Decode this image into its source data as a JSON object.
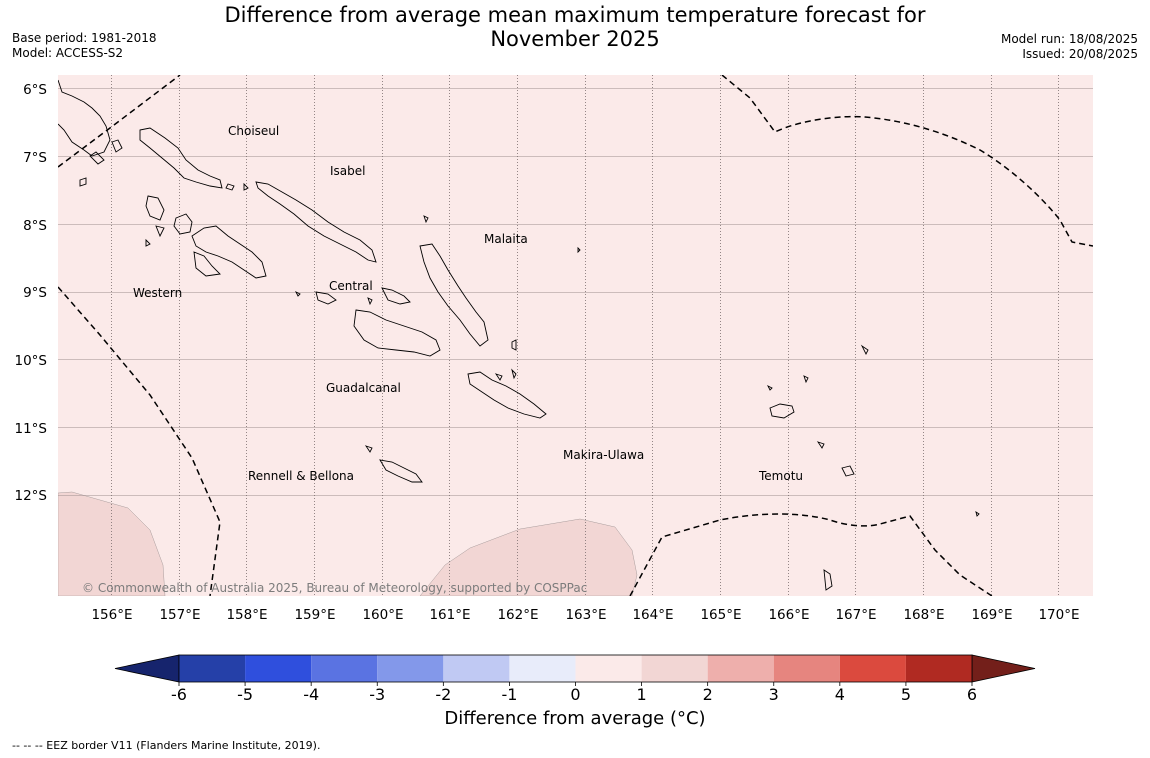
{
  "title": {
    "line1": "Difference from average mean maximum temperature forecast for",
    "line2": "November 2025"
  },
  "meta_left": {
    "base_period": "Base period: 1981-2018",
    "model": "Model: ACCESS-S2"
  },
  "meta_right": {
    "model_run": "Model run: 18/08/2025",
    "issued": "Issued: 20/08/2025"
  },
  "map": {
    "background_color": "#fbeae9",
    "region_color": "#f2d6d4",
    "lon_labels": [
      "156°E",
      "157°E",
      "158°E",
      "159°E",
      "160°E",
      "161°E",
      "162°E",
      "163°E",
      "164°E",
      "165°E",
      "166°E",
      "167°E",
      "168°E",
      "169°E",
      "170°E"
    ],
    "lat_labels": [
      "6°S",
      "7°S",
      "8°S",
      "9°S",
      "10°S",
      "11°S",
      "12°S"
    ],
    "provinces": [
      "Choiseul",
      "Isabel",
      "Malaita",
      "Western",
      "Central",
      "Guadalcanal",
      "Makira-Ulawa",
      "Rennell & Bellona",
      "Temotu"
    ],
    "copyright": "© Commonwealth of Australia 2025, Bureau of Meteorology, supported by COSPPac"
  },
  "colorbar": {
    "ticks": [
      "-6",
      "-5",
      "-4",
      "-3",
      "-2",
      "-1",
      "0",
      "1",
      "2",
      "3",
      "4",
      "5",
      "6"
    ],
    "colors": [
      "#2540a8",
      "#2f4fdd",
      "#5a73e2",
      "#8398ea",
      "#c0c9f3",
      "#e8ecfa",
      "#fbeae9",
      "#f2d6d4",
      "#eeafac",
      "#e6857f",
      "#db4a3e",
      "#b02a22"
    ],
    "low_arrow_color": "#16246d",
    "high_arrow_color": "#731f1a",
    "title": "Difference from average (°C)"
  },
  "footnote": "--  --  -- EEZ border V11 (Flanders Marine Institute, 2019)."
}
